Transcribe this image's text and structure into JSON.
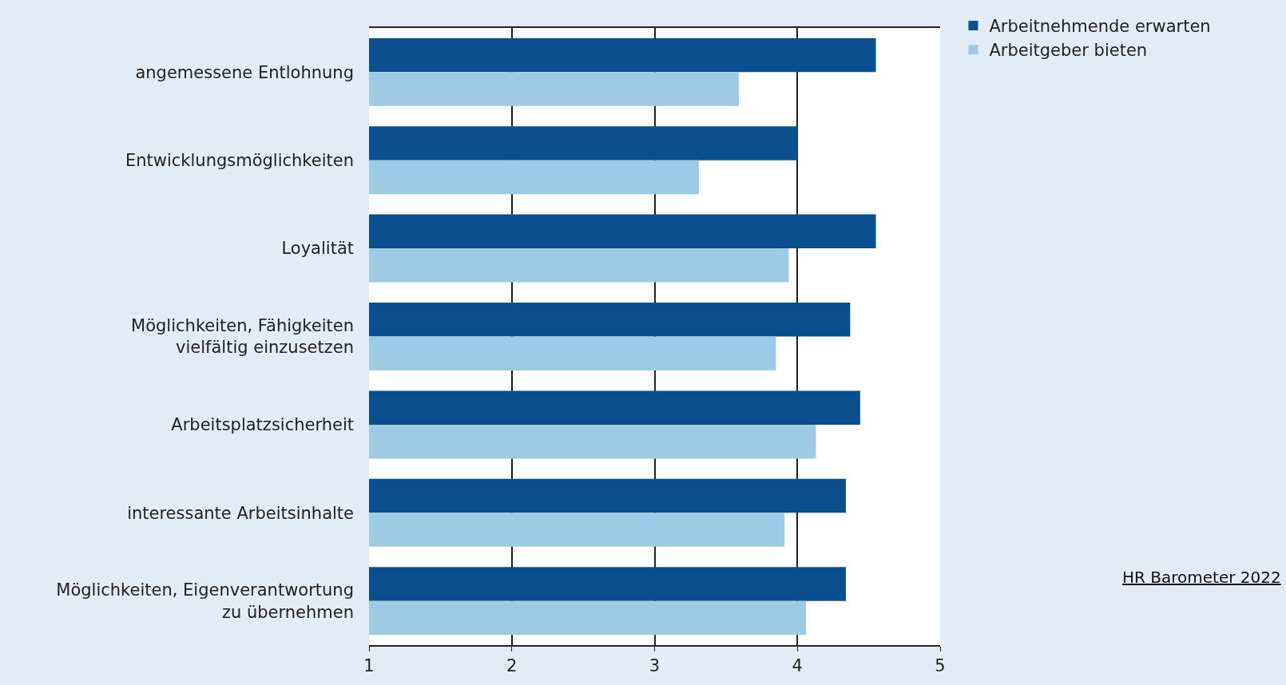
{
  "chart_data": {
    "type": "bar",
    "orientation": "horizontal",
    "categories": [
      "angemessene Entlohnung",
      "Entwicklungsmöglichkeiten",
      "Loyalität",
      "Möglichkeiten, Fähigkeiten\nvielfältig einzusetzen",
      "Arbeitsplatzsicherheit",
      "interessante Arbeitsinhalte",
      "Möglichkeiten, Eigenverantwortung\nzu übernehmen"
    ],
    "series": [
      {
        "name": "Arbeitnehmende erwarten",
        "color": "#0b4f8f",
        "values": [
          4.55,
          4.0,
          4.55,
          4.37,
          4.44,
          4.34,
          4.34
        ]
      },
      {
        "name": "Arbeitgeber bieten",
        "color": "#9dcbe3",
        "values": [
          3.59,
          3.31,
          3.94,
          3.85,
          4.13,
          3.91,
          4.06
        ]
      }
    ],
    "xlim": [
      1,
      5
    ],
    "xticks": [
      1,
      2,
      3,
      4,
      5
    ],
    "grid": "x",
    "legend": "top right",
    "annotations": [
      "HR Barometer 2022"
    ]
  }
}
